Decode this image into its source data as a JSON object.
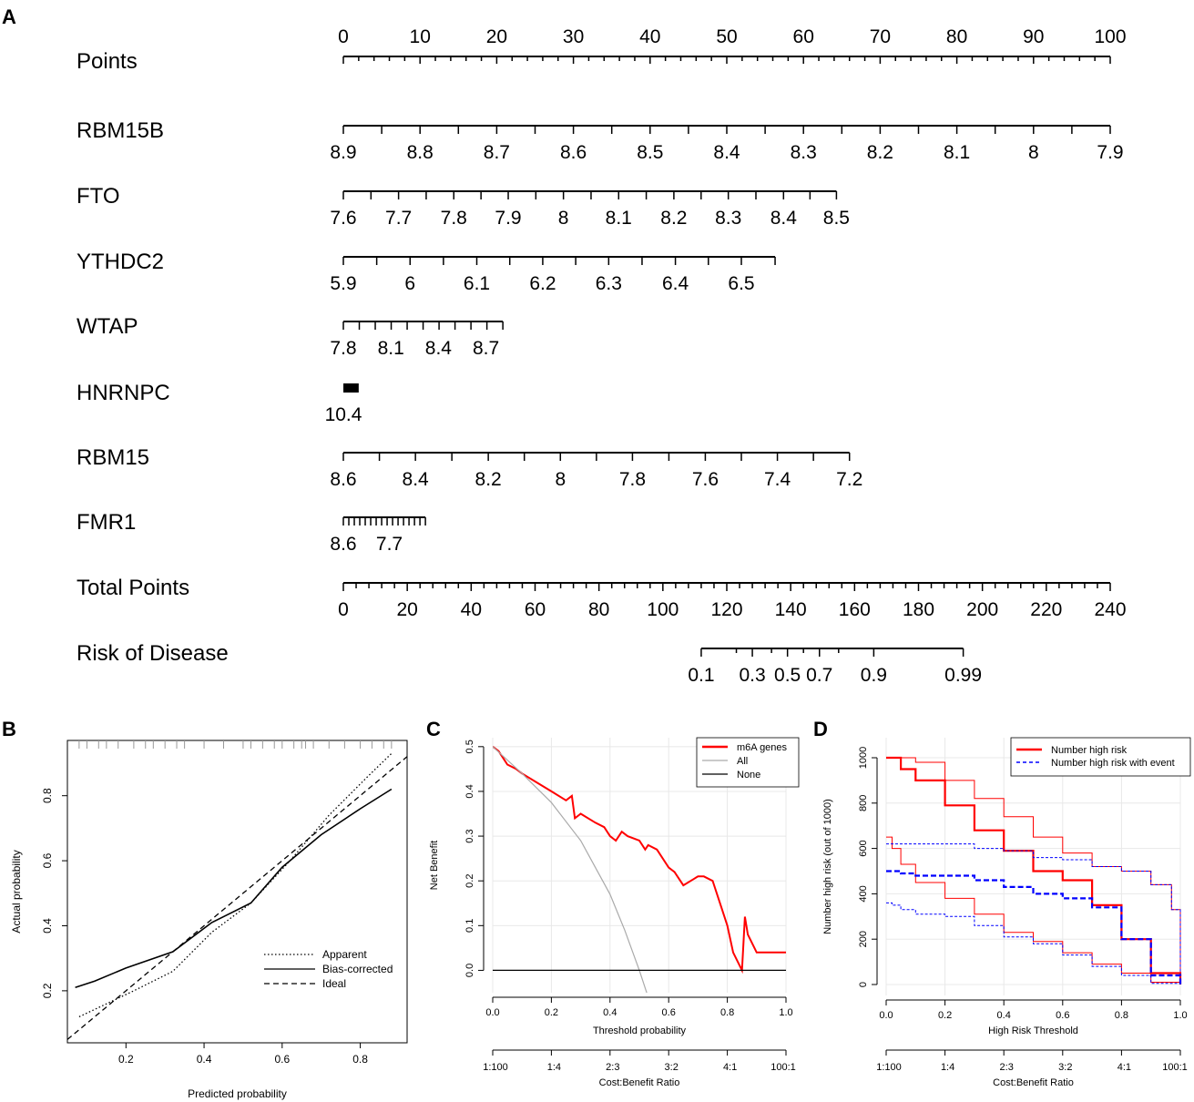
{
  "panels": {
    "A": "A",
    "B": "B",
    "C": "C",
    "D": "D"
  },
  "chart_data": [
    {
      "type": "nomogram",
      "panel": "A",
      "rows": [
        {
          "name": "Points",
          "domain": [
            0,
            100
          ],
          "labels": [
            "0",
            "10",
            "20",
            "30",
            "40",
            "50",
            "60",
            "70",
            "80",
            "90",
            "100"
          ],
          "label_values": [
            0,
            10,
            20,
            30,
            40,
            50,
            60,
            70,
            80,
            90,
            100
          ]
        },
        {
          "name": "RBM15B",
          "labels": [
            "8.9",
            "8.8",
            "8.7",
            "8.6",
            "8.5",
            "8.4",
            "8.3",
            "8.2",
            "8.1",
            "8",
            "7.9"
          ],
          "points": [
            0,
            10,
            20,
            30,
            40,
            50,
            60,
            70,
            80,
            90,
            100
          ]
        },
        {
          "name": "FTO",
          "labels": [
            "7.6",
            "7.7",
            "7.8",
            "7.9",
            "8",
            "8.1",
            "8.2",
            "8.3",
            "8.4",
            "8.5"
          ],
          "points": [
            0,
            7.2,
            14.4,
            21.5,
            28.7,
            35.9,
            43.1,
            50.2,
            57.4,
            64.3
          ]
        },
        {
          "name": "YTHDC2",
          "labels": [
            "5.9",
            "6",
            "6.1",
            "6.2",
            "6.3",
            "6.4",
            "6.5"
          ],
          "points": [
            0,
            8.7,
            17.4,
            26,
            34.6,
            43.3,
            51.9
          ],
          "end_point": 56.3
        },
        {
          "name": "WTAP",
          "labels": [
            "7.8",
            "8.1",
            "8.4",
            "8.7"
          ],
          "points": [
            0,
            6.2,
            12.4,
            18.6
          ],
          "end_point": 20.8
        },
        {
          "name": "HNRNPC",
          "labels": [
            "10.4"
          ],
          "points": [
            0
          ],
          "end_point": 2
        },
        {
          "name": "RBM15",
          "labels": [
            "8.6",
            "8.4",
            "8.2",
            "8",
            "7.8",
            "7.6",
            "7.4",
            "7.2"
          ],
          "points": [
            0,
            9.4,
            18.9,
            28.3,
            37.7,
            47.2,
            56.6,
            66
          ]
        },
        {
          "name": "FMR1",
          "labels": [
            "8.6",
            "7.7"
          ],
          "points": [
            0,
            6
          ],
          "end_point": 10.7
        },
        {
          "name": "Total Points",
          "domain": [
            0,
            240
          ],
          "labels": [
            "0",
            "20",
            "40",
            "60",
            "80",
            "100",
            "120",
            "140",
            "160",
            "180",
            "200",
            "220",
            "240"
          ]
        },
        {
          "name": "Risk of Disease",
          "labels": [
            "0.1",
            "0.3",
            "0.5",
            "0.7",
            "0.9",
            "0.99"
          ],
          "total_points": [
            112,
            128,
            139,
            149,
            166,
            194
          ]
        }
      ]
    },
    {
      "type": "line",
      "panel": "B",
      "xlabel": "Predicted probability",
      "ylabel": "Actual probability",
      "xlim": [
        0.05,
        0.92
      ],
      "ylim": [
        0.04,
        0.97
      ],
      "x_ticks": [
        "0.2",
        "0.4",
        "0.6",
        "0.8"
      ],
      "y_ticks": [
        "0.2",
        "0.4",
        "0.6",
        "0.8"
      ],
      "legend": [
        "Apparent",
        "Bias-corrected",
        "Ideal"
      ],
      "series": [
        {
          "name": "Apparent",
          "style": "dotted",
          "x": [
            0.08,
            0.15,
            0.22,
            0.32,
            0.42,
            0.52,
            0.62,
            0.72,
            0.82,
            0.88
          ],
          "y": [
            0.12,
            0.16,
            0.2,
            0.26,
            0.38,
            0.47,
            0.6,
            0.74,
            0.86,
            0.93
          ]
        },
        {
          "name": "Bias-corrected",
          "style": "solid",
          "x": [
            0.07,
            0.12,
            0.2,
            0.32,
            0.42,
            0.52,
            0.6,
            0.7,
            0.8,
            0.88
          ],
          "y": [
            0.21,
            0.23,
            0.27,
            0.32,
            0.41,
            0.47,
            0.58,
            0.68,
            0.76,
            0.82
          ]
        },
        {
          "name": "Ideal",
          "style": "dashed",
          "x": [
            0.05,
            0.92
          ],
          "y": [
            0.05,
            0.92
          ]
        }
      ],
      "rug_x": [
        0.08,
        0.1,
        0.13,
        0.15,
        0.18,
        0.22,
        0.25,
        0.27,
        0.3,
        0.33,
        0.35,
        0.4,
        0.45,
        0.5,
        0.52,
        0.55,
        0.58,
        0.6,
        0.63,
        0.65,
        0.66,
        0.68,
        0.72,
        0.76,
        0.8,
        0.83,
        0.86,
        0.88
      ]
    },
    {
      "type": "line",
      "panel": "C",
      "xlabel": "Threshold probability",
      "ylabel": "Net Benefit",
      "x2label": "Cost:Benefit Ratio",
      "xlim": [
        0,
        1
      ],
      "ylim": [
        -0.05,
        0.52
      ],
      "x_ticks": [
        "0.0",
        "0.2",
        "0.4",
        "0.6",
        "0.8",
        "1.0"
      ],
      "y_ticks": [
        "0.0",
        "0.1",
        "0.2",
        "0.3",
        "0.4",
        "0.5"
      ],
      "x2_ticks": [
        "1:100",
        "1:4",
        "2:3",
        "3:2",
        "4:1",
        "100:1"
      ],
      "legend": [
        "m6A genes",
        "All",
        "None"
      ],
      "series": [
        {
          "name": "m6A genes",
          "color": "#ff0000",
          "x": [
            0,
            0.02,
            0.04,
            0.05,
            0.08,
            0.1,
            0.15,
            0.2,
            0.25,
            0.27,
            0.28,
            0.3,
            0.35,
            0.38,
            0.4,
            0.42,
            0.44,
            0.46,
            0.5,
            0.52,
            0.53,
            0.56,
            0.6,
            0.62,
            0.65,
            0.7,
            0.72,
            0.75,
            0.78,
            0.8,
            0.82,
            0.85,
            0.86,
            0.87,
            0.9,
            1.0
          ],
          "y": [
            0.5,
            0.49,
            0.47,
            0.46,
            0.45,
            0.44,
            0.42,
            0.4,
            0.38,
            0.39,
            0.34,
            0.35,
            0.33,
            0.32,
            0.3,
            0.29,
            0.31,
            0.3,
            0.29,
            0.27,
            0.28,
            0.27,
            0.23,
            0.22,
            0.19,
            0.21,
            0.21,
            0.2,
            0.14,
            0.1,
            0.04,
            0.0,
            0.12,
            0.08,
            0.04,
            0.04
          ]
        },
        {
          "name": "All",
          "color": "#aaaaaa",
          "x": [
            0,
            0.1,
            0.2,
            0.3,
            0.4,
            0.45,
            0.5,
            0.53
          ],
          "y": [
            0.5,
            0.44,
            0.375,
            0.29,
            0.17,
            0.09,
            0.0,
            -0.06
          ]
        },
        {
          "name": "None",
          "color": "#000000",
          "x": [
            0,
            1
          ],
          "y": [
            0,
            0
          ]
        }
      ]
    },
    {
      "type": "line",
      "panel": "D",
      "xlabel": "High Risk Threshold",
      "ylabel": "Number high risk (out of 1000)",
      "x2label": "Cost:Benefit Ratio",
      "xlim": [
        0,
        1
      ],
      "ylim": [
        0,
        1000
      ],
      "x_ticks": [
        "0.0",
        "0.2",
        "0.4",
        "0.6",
        "0.8",
        "1.0"
      ],
      "y_ticks": [
        "0",
        "200",
        "400",
        "600",
        "800",
        "1000"
      ],
      "x2_ticks": [
        "1:100",
        "1:4",
        "2:3",
        "3:2",
        "4:1",
        "100:1"
      ],
      "legend": [
        "Number high risk",
        "Number high risk with event"
      ],
      "series": [
        {
          "name": "Number high risk",
          "color": "#ff0000",
          "x": [
            0,
            0.02,
            0.05,
            0.1,
            0.2,
            0.3,
            0.4,
            0.5,
            0.6,
            0.7,
            0.8,
            0.9,
            1.0
          ],
          "y": [
            1000,
            1000,
            950,
            900,
            790,
            680,
            590,
            500,
            460,
            350,
            200,
            50,
            0
          ]
        },
        {
          "name": "Number high risk upper",
          "color": "#ff0000",
          "thin": true,
          "x": [
            0,
            0.05,
            0.1,
            0.2,
            0.3,
            0.4,
            0.5,
            0.6,
            0.7,
            0.8,
            0.9,
            0.97,
            1.0
          ],
          "y": [
            1000,
            1000,
            980,
            900,
            820,
            740,
            650,
            580,
            520,
            500,
            440,
            330,
            0
          ]
        },
        {
          "name": "Number high risk lower",
          "color": "#ff0000",
          "thin": true,
          "x": [
            0,
            0.02,
            0.05,
            0.1,
            0.2,
            0.3,
            0.4,
            0.5,
            0.6,
            0.7,
            0.8,
            0.9,
            1.0
          ],
          "y": [
            650,
            600,
            530,
            450,
            380,
            310,
            230,
            190,
            140,
            90,
            50,
            10,
            0
          ]
        },
        {
          "name": "Number high risk with event",
          "color": "#0000ff",
          "x": [
            0,
            0.05,
            0.1,
            0.2,
            0.3,
            0.4,
            0.5,
            0.6,
            0.7,
            0.8,
            0.9,
            1.0
          ],
          "y": [
            500,
            490,
            480,
            480,
            460,
            430,
            400,
            380,
            340,
            200,
            40,
            0
          ]
        },
        {
          "name": "With event upper",
          "color": "#0000ff",
          "thin": true,
          "x": [
            0,
            0.1,
            0.2,
            0.3,
            0.4,
            0.5,
            0.6,
            0.7,
            0.8,
            0.9,
            0.97,
            1.0
          ],
          "y": [
            620,
            620,
            620,
            600,
            590,
            560,
            550,
            520,
            500,
            440,
            330,
            0
          ]
        },
        {
          "name": "With event lower",
          "color": "#0000ff",
          "thin": true,
          "x": [
            0,
            0.02,
            0.05,
            0.1,
            0.2,
            0.3,
            0.4,
            0.5,
            0.6,
            0.7,
            0.8,
            0.9,
            1.0
          ],
          "y": [
            360,
            350,
            330,
            310,
            300,
            260,
            210,
            180,
            130,
            80,
            40,
            5,
            0
          ]
        }
      ]
    }
  ]
}
